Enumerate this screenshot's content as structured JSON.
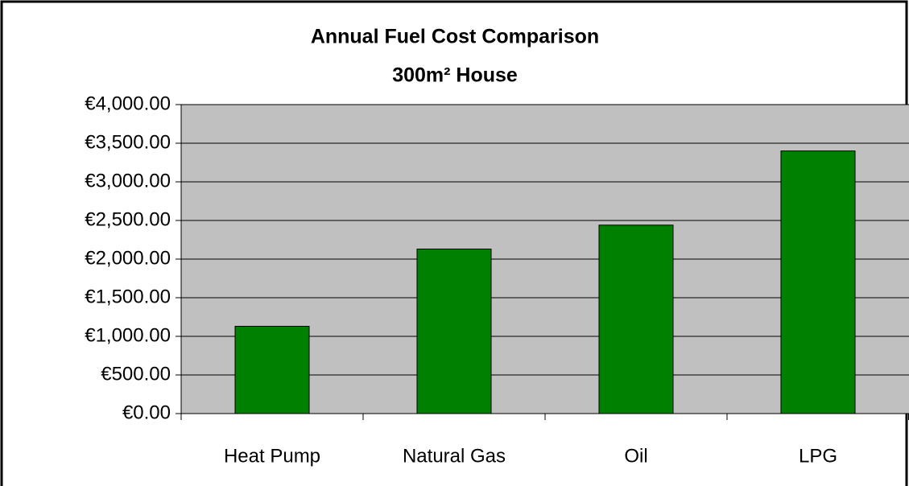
{
  "chart_data": {
    "type": "bar",
    "title": "Annual Fuel Cost Comparison",
    "subtitle": "300m² House",
    "categories": [
      "Heat Pump",
      "Natural Gas",
      "Oil",
      "LPG"
    ],
    "values": [
      1130,
      2130,
      2440,
      3400
    ],
    "color": "#008000",
    "ylim": [
      0,
      4000
    ],
    "yticks": [
      {
        "value": 0,
        "label": "€0.00"
      },
      {
        "value": 500,
        "label": "€500.00"
      },
      {
        "value": 1000,
        "label": "€1,000.00"
      },
      {
        "value": 1500,
        "label": "€1,500.00"
      },
      {
        "value": 2000,
        "label": "€2,000.00"
      },
      {
        "value": 2500,
        "label": "€2,500.00"
      },
      {
        "value": 3000,
        "label": "€3,000.00"
      },
      {
        "value": 3500,
        "label": "€3,500.00"
      },
      {
        "value": 4000,
        "label": "€4,000.00"
      }
    ],
    "grid": true
  }
}
